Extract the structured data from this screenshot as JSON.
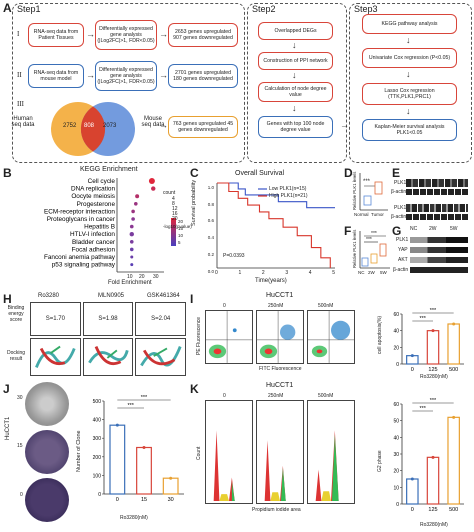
{
  "panel_a": {
    "letter": "A",
    "step1_title": "Step1",
    "step2_title": "Step2",
    "step3_title": "Step3",
    "row1_roman": "I",
    "row2_roman": "II",
    "row3_roman": "III",
    "row1_source": "RNA-seq data from Patient Tissues",
    "row1_analysis": "Differentially expressed gene analysis (|Log2FC|>1, FDR<0.05)",
    "row1_result": "2653 genes upregulated 907 genes downregulated",
    "row2_source": "RNA-seq data from mouse model",
    "row2_analysis": "Differentially expressed gene analysis (|Log2FC|>1, FDR<0.05)",
    "row2_result": "2701 genes upregulated 180 genes downregulated",
    "venn_left_label": "Human seq data",
    "venn_right_label": "Mouse seq data",
    "venn_left_n": "2752",
    "venn_mid_n": "808",
    "venn_right_n": "2073",
    "venn_result": "763 genes upregulated 45 genes downregulated",
    "step2_boxes": [
      "Overlapped DEGs",
      "Construction of PPI network",
      "Calculation of node degree value",
      "Genes with top 100 node degree value"
    ],
    "step3_boxes": [
      "KEGG pathway analysis",
      "Univariate Cox regression (P<0.05)",
      "Lasso Cox regression (TTK,PLK1,PRC1)",
      "Kaplan-Meier survival analysis PLK1<0.05"
    ]
  },
  "panel_b": {
    "letter": "B",
    "title": "KEGG Enrichment",
    "xlabel": "Fold Enrichment",
    "legend_count_title": "count",
    "legend_counts": [
      "4",
      "8",
      "12",
      "16",
      "20"
    ],
    "legend_p_title": "-log10(pvalue)",
    "legend_p_ticks": [
      "20",
      "15",
      "10",
      "5"
    ],
    "x_ticks": [
      "10",
      "20",
      "30"
    ]
  },
  "panel_c": {
    "letter": "C",
    "title": "Overall Survival",
    "ylabel": "Survival probability",
    "xlabel": "Time(years)",
    "legend_low": "Low PLK1(n=15)",
    "legend_high": "High PLK1(n=21)",
    "pvalue": "P=0.0393",
    "y_ticks": [
      "1.0",
      "0.8",
      "0.6",
      "0.4",
      "0.2",
      "0.0"
    ],
    "x_ticks": [
      "0",
      "1",
      "2",
      "3",
      "4",
      "5"
    ],
    "low_color": "#3a55c8",
    "high_color": "#d8362b"
  },
  "panel_d": {
    "letter": "D",
    "ylabel": "Relative PLK1 levels",
    "categories": [
      "Normal",
      "Tumor"
    ],
    "sig": "***"
  },
  "panel_e": {
    "letter": "E",
    "labels": [
      "PLK1",
      "β-actin",
      "PLK1",
      "β-actin"
    ]
  },
  "panel_f": {
    "letter": "F",
    "ylabel": "Relative PLK1 levels",
    "categories": [
      "NC",
      "2W",
      "5W"
    ],
    "sig1": "***",
    "sig2": "***"
  },
  "panel_g": {
    "letter": "G",
    "col_labels": [
      "NC",
      "2W",
      "5W"
    ],
    "row_labels": [
      "PLK1",
      "YAP",
      "AKT",
      "β-actin"
    ]
  },
  "panel_h": {
    "letter": "H",
    "compounds": [
      "Ro3280",
      "MLN0905",
      "GSK461364"
    ],
    "scores": [
      "S=1.70",
      "S=1.98",
      "S=2.04"
    ],
    "row1_label": "Binding energy score",
    "row2_label": "Docking result"
  },
  "panel_i": {
    "letter": "I",
    "title": "HuCCT1",
    "conditions": [
      "0",
      "250nM",
      "500nM"
    ],
    "xlabel": "FITC Fluorescence",
    "ylabel": "PE Fluorescence",
    "bar_ylabel": "cell apoptosis(%)",
    "bar_xlabel": "Ro3280(nM)",
    "bar_categories": [
      "0",
      "125",
      "500"
    ],
    "sig": [
      "***",
      "***"
    ]
  },
  "panel_j": {
    "letter": "J",
    "cell_label": "HuCCT1",
    "row_labels": [
      "30",
      "15",
      "0"
    ],
    "bar_ylabel": "Number of Clone",
    "bar_xlabel": "Ro3280(nM)",
    "bar_categories": [
      "0",
      "15",
      "30"
    ],
    "sig": [
      "***",
      "***"
    ]
  },
  "panel_k": {
    "letter": "K",
    "title": "HuCCT1",
    "conditions": [
      "0",
      "250nM",
      "500nM"
    ],
    "xlabel": "Propidium iodide area",
    "ylabel": "Count",
    "bar_ylabel": "G2 phase",
    "bar_xlabel": "Ro3280(nM)",
    "bar_categories": [
      "0",
      "125",
      "500"
    ],
    "sig": [
      "***",
      "***"
    ]
  },
  "chart_data": [
    {
      "type": "scatter",
      "title": "KEGG Enrichment",
      "xlabel": "Fold Enrichment",
      "categories": [
        "Cell cycle",
        "DNA replication",
        "Oocyte meiosis",
        "Progesterone",
        "ECM-receptor interaction",
        "Proteoglycans in cancer",
        "Hepatitis B",
        "HTLV-I infection",
        "Bladder cancer",
        "Focal adhesion",
        "Fanconi anemia pathway",
        "p53 signaling pathway"
      ],
      "x": [
        26,
        27,
        15,
        14,
        12,
        12,
        11,
        11,
        11,
        11,
        11,
        11
      ],
      "xlim": [
        0,
        35
      ]
    },
    {
      "type": "line",
      "title": "Overall Survival",
      "xlabel": "Time(years)",
      "ylabel": "Survival probability",
      "xlim": [
        0,
        5
      ],
      "ylim": [
        0,
        1
      ],
      "series": [
        {
          "name": "Low PLK1(n=15)",
          "x": [
            0,
            0.9,
            1.2,
            2.6,
            3.8,
            5.0
          ],
          "y": [
            1.0,
            0.93,
            0.86,
            0.78,
            0.71,
            0.71
          ]
        },
        {
          "name": "High PLK1(n=21)",
          "x": [
            0,
            0.5,
            0.9,
            1.3,
            1.8,
            2.2,
            2.8,
            3.4,
            4.0,
            4.4,
            4.8
          ],
          "y": [
            1.0,
            0.9,
            0.82,
            0.74,
            0.66,
            0.58,
            0.48,
            0.38,
            0.24,
            0.12,
            0.0
          ]
        }
      ]
    },
    {
      "type": "bar",
      "ylabel": "cell apoptosis(%)",
      "xlabel": "Ro3280(nM)",
      "categories": [
        "0",
        "125",
        "500"
      ],
      "values": [
        10,
        40,
        48
      ],
      "ylim": [
        0,
        60
      ]
    },
    {
      "type": "bar",
      "ylabel": "Number of Clone",
      "xlabel": "Ro3280(nM)",
      "categories": [
        "0",
        "15",
        "30"
      ],
      "values": [
        370,
        250,
        85
      ],
      "ylim": [
        0,
        500
      ]
    },
    {
      "type": "bar",
      "ylabel": "G2 phase",
      "xlabel": "Ro3280(nM)",
      "categories": [
        "0",
        "125",
        "500"
      ],
      "values": [
        15,
        28,
        52
      ],
      "ylim": [
        0,
        60
      ]
    }
  ]
}
